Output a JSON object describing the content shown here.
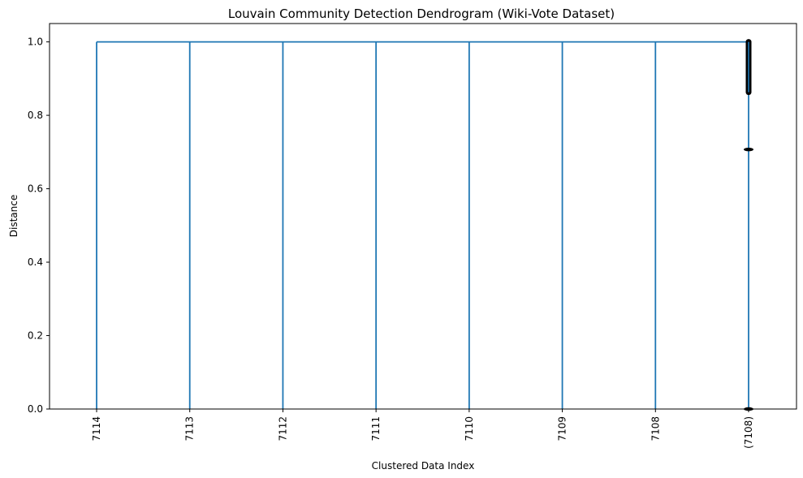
{
  "chart_data": {
    "type": "dendrogram",
    "title": "Louvain Community Detection Dendrogram (Wiki-Vote Dataset)",
    "xlabel": "Clustered Data Index",
    "ylabel": "Distance",
    "ylim": [
      0,
      1.05
    ],
    "yticks": [
      0.0,
      0.2,
      0.4,
      0.6,
      0.8,
      1.0
    ],
    "ytick_labels": [
      "0.0",
      "0.2",
      "0.4",
      "0.6",
      "0.8",
      "1.0"
    ],
    "leaves": [
      "7114",
      "7113",
      "7112",
      "7111",
      "7110",
      "7109",
      "7108",
      "(7108)"
    ],
    "merge_height": 1.0,
    "link_color": "#1f77b4",
    "marker_color": "#000000",
    "collapsed_leaf_markers": {
      "leaf": "(7108)",
      "dense_range": [
        0.863,
        1.0
      ],
      "isolated": [
        0.707,
        0.0
      ]
    },
    "grid": false
  }
}
